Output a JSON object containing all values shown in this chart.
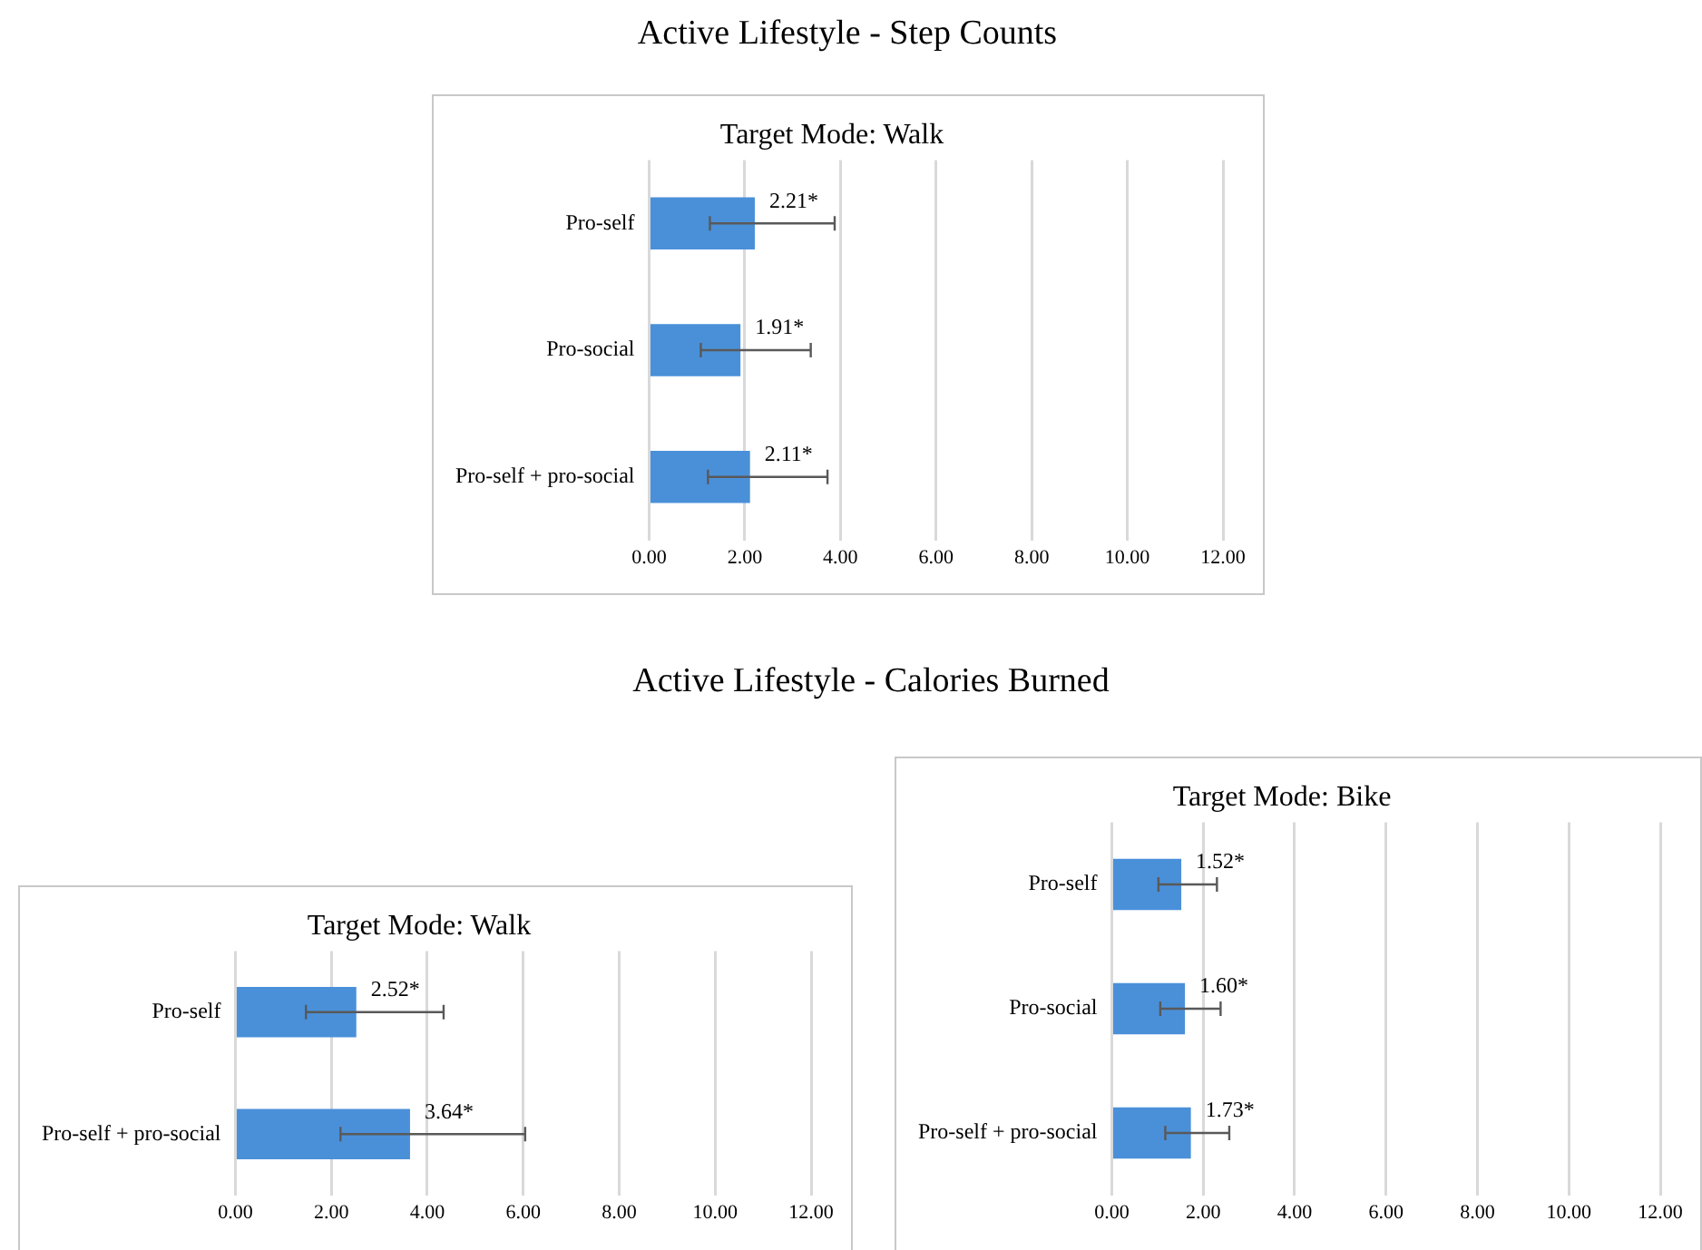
{
  "chart_data": [
    {
      "type": "bar",
      "orientation": "horizontal",
      "title": "Active Lifestyle - Step Counts",
      "subtitle": "Target Mode: Walk",
      "categories": [
        "Pro-self",
        "Pro-social",
        "Pro-self + pro-social"
      ],
      "values": [
        2.21,
        1.91,
        2.11
      ],
      "color": "#4a90d9",
      "errors": [
        [
          1.27,
          3.88
        ],
        [
          1.08,
          3.38
        ],
        [
          1.23,
          3.73
        ]
      ],
      "value_labels": [
        "2.21*",
        "1.91*",
        "2.11*"
      ],
      "xlim": [
        0,
        12
      ],
      "xticks": [
        {
          "value": 0,
          "label": "0.00"
        },
        {
          "value": 2,
          "label": "2.00"
        },
        {
          "value": 4,
          "label": "4.00"
        },
        {
          "value": 6,
          "label": "6.00"
        },
        {
          "value": 8,
          "label": "8.00"
        },
        {
          "value": 10,
          "label": "10.00"
        },
        {
          "value": 12,
          "label": "12.00"
        }
      ],
      "grid": "x",
      "legend": false
    },
    {
      "type": "bar",
      "orientation": "horizontal",
      "title": "Active Lifestyle - Calories Burned",
      "subtitle": "Target Mode: Walk",
      "categories": [
        "Pro-self",
        "Pro-self + pro-social"
      ],
      "values": [
        2.52,
        3.64
      ],
      "color": "#4a90d9",
      "errors": [
        [
          1.47,
          4.34
        ],
        [
          2.19,
          6.04
        ]
      ],
      "value_labels": [
        "2.52*",
        "3.64*"
      ],
      "xlim": [
        0,
        12
      ],
      "xticks": [
        {
          "value": 0,
          "label": "0.00"
        },
        {
          "value": 2,
          "label": "2.00"
        },
        {
          "value": 4,
          "label": "4.00"
        },
        {
          "value": 6,
          "label": "6.00"
        },
        {
          "value": 8,
          "label": "8.00"
        },
        {
          "value": 10,
          "label": "10.00"
        },
        {
          "value": 12,
          "label": "12.00"
        }
      ],
      "grid": "x",
      "legend": false
    },
    {
      "type": "bar",
      "orientation": "horizontal",
      "title": "Target Mode: Bike",
      "categories": [
        "Pro-self",
        "Pro-social",
        "Pro-self + pro-social"
      ],
      "values": [
        1.52,
        1.6,
        1.73
      ],
      "color": "#4a90d9",
      "errors": [
        [
          1.02,
          2.3
        ],
        [
          1.06,
          2.38
        ],
        [
          1.17,
          2.57
        ]
      ],
      "value_labels": [
        "1.52*",
        "1.60*",
        "1.73*"
      ],
      "xlim": [
        0,
        12
      ],
      "xticks": [
        {
          "value": 0,
          "label": "0.00"
        },
        {
          "value": 2,
          "label": "2.00"
        },
        {
          "value": 4,
          "label": "4.00"
        },
        {
          "value": 6,
          "label": "6.00"
        },
        {
          "value": 8,
          "label": "8.00"
        },
        {
          "value": 10,
          "label": "10.00"
        },
        {
          "value": 12,
          "label": "12.00"
        }
      ],
      "grid": "x",
      "legend": false
    }
  ]
}
